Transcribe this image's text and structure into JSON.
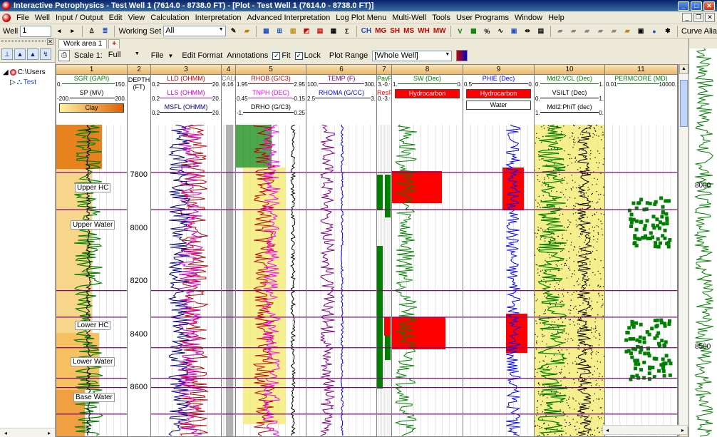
{
  "window": {
    "title": "Interactive Petrophysics  -  Test Well 1 (7614.0 - 8738.0 FT) - [Plot - Test Well 1 (7614.0 - 8738.0 FT)]"
  },
  "menu": [
    "File",
    "Well",
    "Input / Output",
    "Edit",
    "View",
    "Calculation",
    "Interpretation",
    "Advanced Interpretation",
    "Log Plot Menu",
    "Multi-Well",
    "Tools",
    "User Programs",
    "Window",
    "Help"
  ],
  "toolbar": {
    "well_label": "Well",
    "well_value": "1",
    "working_set_label": "Working Set",
    "working_set_value": "All",
    "abbrs": [
      "CH",
      "MG",
      "SH",
      "MS",
      "WH",
      "MW"
    ],
    "curve_alias": "Curve Alia"
  },
  "tree": {
    "root": "C:\\Users",
    "well": "Test"
  },
  "tabs": [
    "Work area 1",
    "+"
  ],
  "plot_toolbar": {
    "scale_label": "Scale 1:",
    "scale_value": "Full",
    "file": "File",
    "edit_format": "Edit Format",
    "annotations": "Annotations",
    "fit": "Fit",
    "lock": "Lock",
    "plot_range_label": "Plot Range",
    "plot_range_value": "[Whole Well]"
  },
  "tracks": [
    {
      "num": "1",
      "curves": [
        {
          "name": "SGR (GAPI)",
          "lo": "0.",
          "hi": "150.",
          "color": "#008000"
        },
        {
          "name": "SP (MV)",
          "lo": "-200.",
          "hi": "200.",
          "color": "#000000"
        }
      ],
      "shade": "Clay"
    },
    {
      "num": "2",
      "depth_label": "DEPTH\n(FT)"
    },
    {
      "num": "3",
      "curves": [
        {
          "name": "LLD (OHMM)",
          "lo": "0.2",
          "hi": "20.",
          "color": "#c00000"
        },
        {
          "name": "LLS (OHMM)",
          "lo": "0.2",
          "hi": "20.",
          "color": "#d000d0"
        },
        {
          "name": "MSFL (OHMM)",
          "lo": "0.2",
          "hi": "20.",
          "color": "#000080"
        }
      ]
    },
    {
      "num": "4",
      "curves": [
        {
          "name": "CALI",
          "lo": "6.16",
          "hi": "",
          "color": "#808080"
        }
      ]
    },
    {
      "num": "5",
      "curves": [
        {
          "name": "RHOB (G/C3)",
          "lo": "1.95",
          "hi": "2.95",
          "color": "#c00000"
        },
        {
          "name": "TNPH (DEC)",
          "lo": "0.45",
          "hi": "-0.15",
          "color": "#ff00ff"
        },
        {
          "name": "DRHO (G/C3)",
          "lo": "-1.",
          "hi": "0.25",
          "color": "#000000"
        }
      ]
    },
    {
      "num": "6",
      "curves": [
        {
          "name": "TEMP (F)",
          "lo": "100.",
          "hi": "300.",
          "color": "#800080"
        },
        {
          "name": "RHOMA (G/CC)",
          "lo": "2.5",
          "hi": "3.",
          "color": "#0000ff"
        }
      ]
    },
    {
      "num": "7",
      "curves": [
        {
          "name": "PayF",
          "lo": "3.-0.",
          "hi": "",
          "color": "#008000"
        },
        {
          "name": "ResF",
          "lo": "0.-3.",
          "hi": "",
          "color": "#ff0000"
        }
      ]
    },
    {
      "num": "8",
      "curves": [
        {
          "name": "SW (Dec)",
          "lo": "1.",
          "hi": "0.",
          "color": "#008000"
        }
      ],
      "shade": "Hydrocarbon"
    },
    {
      "num": "9",
      "curves": [
        {
          "name": "PHIE (Dec)",
          "lo": "0.5",
          "hi": "0.",
          "color": "#0000ff"
        }
      ],
      "shade": "Hydrocarbon",
      "shade2": "Water"
    },
    {
      "num": "10",
      "curves": [
        {
          "name": "Mdl2:VCL (Dec)",
          "lo": "0.",
          "hi": "1.",
          "color": "#008000"
        },
        {
          "name": "VSILT (Dec)",
          "lo": "0.",
          "hi": "1.",
          "color": "#000000"
        },
        {
          "name": "Mdl2:PhiT (dec)",
          "lo": "1.",
          "hi": "0.",
          "color": "#000000"
        }
      ]
    },
    {
      "num": "11",
      "curves": [
        {
          "name": "PERMCORE (MD)",
          "lo": "0.01",
          "hi": "10000.",
          "color": "#008000"
        }
      ]
    }
  ],
  "depths": [
    "7800",
    "8000",
    "8200",
    "8400",
    "8600"
  ],
  "zones": [
    "Upper HC",
    "Upper Water",
    "Lower HC",
    "Lower Water",
    "Base Water"
  ],
  "right_depths": [
    "8000",
    "8500"
  ],
  "colors": {
    "accent": "#0a246a",
    "sand": "#f2ec70",
    "hydrocarbon": "#ff0000",
    "water": "#0000ff",
    "shale": "#e88a20",
    "pay": "#008000"
  }
}
